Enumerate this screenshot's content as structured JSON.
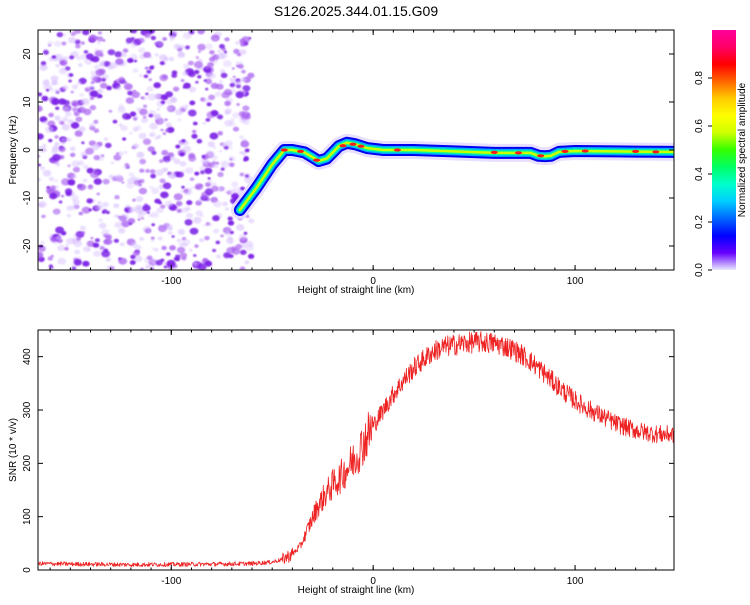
{
  "title": "S126.2025.344.01.15.G09",
  "colors": {
    "snr_line": "#ee2222",
    "axis": "#000000",
    "scatter": "#8a2be2",
    "colormap": [
      "#e8e8ff",
      "#6600ff",
      "#0000ff",
      "#0066ff",
      "#00ccff",
      "#00ffcc",
      "#00ff66",
      "#33ff00",
      "#ccff00",
      "#ffff00",
      "#ffcc00",
      "#ff6600",
      "#ff0000",
      "#ff0066",
      "#ff0099"
    ]
  },
  "chart_data": [
    {
      "type": "heatmap",
      "title": "S126.2025.344.01.15.G09",
      "xlabel": "Height of straight line (km)",
      "ylabel": "Frequency (Hz)",
      "xlim": [
        -166,
        149
      ],
      "ylim": [
        -25,
        25
      ],
      "xticks": [
        -100,
        0,
        100
      ],
      "xtick_labels": [
        "-100",
        "0",
        "100"
      ],
      "yticks": [
        -20,
        -10,
        0,
        10,
        20
      ],
      "ytick_labels": [
        "-20",
        "-10",
        "0",
        "10",
        "20"
      ],
      "noise_region_x": [
        -166,
        -60
      ],
      "ridge": {
        "x": [
          -66,
          -58,
          -50,
          -44,
          -40,
          -34,
          -30,
          -27,
          -23,
          -20,
          -17,
          -13,
          -9,
          -3,
          5,
          20,
          40,
          60,
          78,
          82,
          85,
          88,
          92,
          100,
          120,
          149
        ],
        "y": [
          -12.5,
          -8,
          -3,
          0,
          0,
          -0.5,
          -1.5,
          -2.3,
          -1.8,
          -0.5,
          0.8,
          1.5,
          1.2,
          0.4,
          0,
          0,
          -0.3,
          -0.6,
          -0.6,
          -1.2,
          -1.3,
          -1.2,
          -0.4,
          -0.2,
          -0.3,
          -0.4
        ]
      },
      "colorbar": {
        "label": "Normalized spectral amplitude",
        "range": [
          0,
          1
        ],
        "ticks": [
          0.0,
          0.2,
          0.4,
          0.6,
          0.8
        ],
        "tick_labels": [
          "0.0",
          "0.2",
          "0.4",
          "0.6",
          "0.8"
        ]
      }
    },
    {
      "type": "line",
      "xlabel": "Height of straight line (km)",
      "ylabel": "SNR (10 * v/v)",
      "xlim": [
        -166,
        149
      ],
      "ylim": [
        0,
        450
      ],
      "xticks": [
        -100,
        0,
        100
      ],
      "xtick_labels": [
        "-100",
        "0",
        "100"
      ],
      "yticks": [
        0,
        100,
        200,
        300,
        400
      ],
      "ytick_labels": [
        "0",
        "100",
        "200",
        "300",
        "400"
      ],
      "series": [
        {
          "x": [
            -166,
            -120,
            -80,
            -60,
            -50,
            -45,
            -40,
            -36,
            -32,
            -28,
            -24,
            -20,
            -16,
            -12,
            -8,
            -4,
            0,
            5,
            10,
            15,
            20,
            25,
            30,
            35,
            40,
            45,
            50,
            55,
            60,
            65,
            70,
            75,
            80,
            85,
            90,
            95,
            100,
            105,
            110,
            115,
            120,
            125,
            130,
            135,
            140,
            145,
            149
          ],
          "y": [
            12,
            10,
            11,
            12,
            15,
            20,
            30,
            45,
            80,
            115,
            140,
            160,
            175,
            195,
            215,
            245,
            270,
            300,
            330,
            355,
            378,
            395,
            410,
            418,
            422,
            425,
            427,
            427,
            425,
            420,
            412,
            400,
            385,
            368,
            350,
            333,
            318,
            305,
            295,
            285,
            275,
            268,
            262,
            258,
            255,
            254,
            255
          ]
        }
      ]
    }
  ]
}
